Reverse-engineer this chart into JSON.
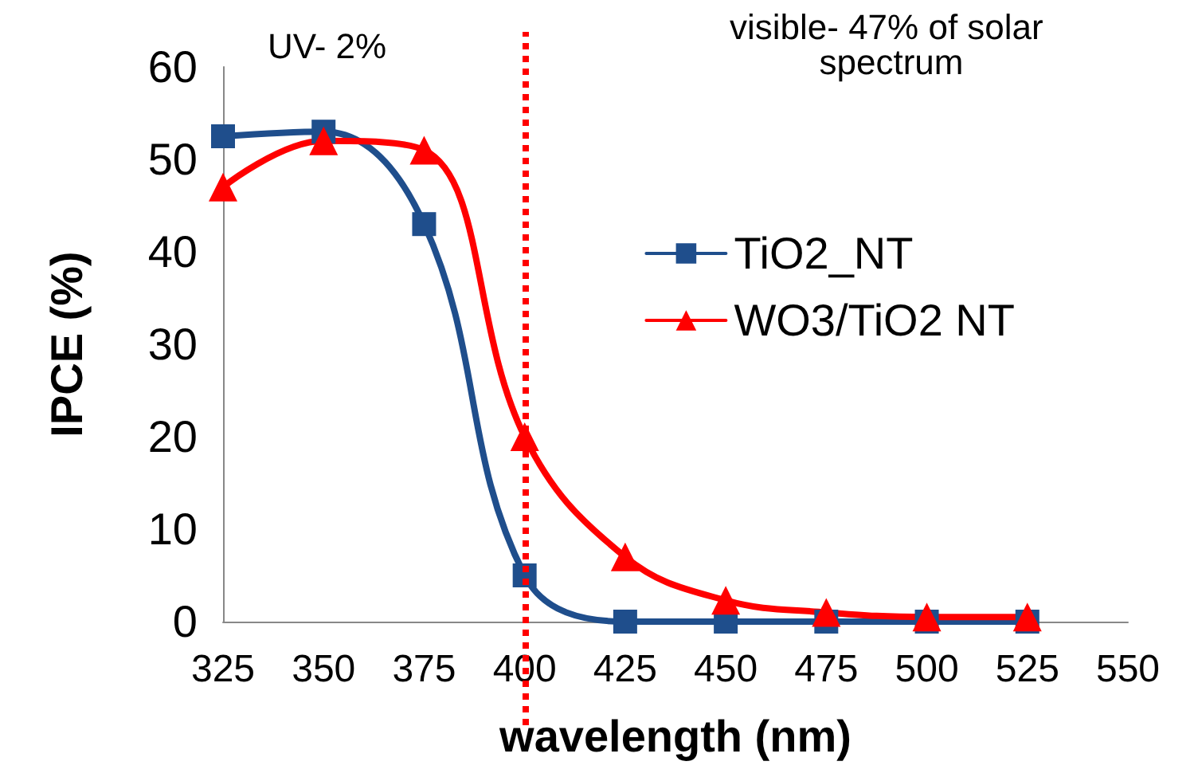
{
  "chart_data": {
    "type": "line",
    "xlabel": "wavelength (nm)",
    "ylabel": "IPCE (%)",
    "x": [
      325,
      350,
      375,
      400,
      425,
      450,
      475,
      500,
      525
    ],
    "series": [
      {
        "name": "TiO2_NT",
        "color": "#1f4e8c",
        "marker": "square",
        "values": [
          52.5,
          53,
          43,
          5,
          0,
          0,
          0,
          0,
          0
        ]
      },
      {
        "name": "WO3/TiO2 NT",
        "color": "#ff0000",
        "marker": "triangle",
        "values": [
          47,
          52,
          51,
          20,
          7,
          2.3,
          1,
          0.5,
          0.5
        ]
      }
    ],
    "xlim": [
      325,
      550
    ],
    "xticks": [
      325,
      350,
      375,
      400,
      425,
      450,
      475,
      500,
      525,
      550
    ],
    "ylim": [
      0,
      60
    ],
    "yticks": [
      0,
      10,
      20,
      30,
      40,
      50,
      60
    ],
    "ref_lines": [
      {
        "axis": "x",
        "value": 400,
        "color": "#ff0000",
        "line_style": "dotted"
      }
    ],
    "annotations": [
      "UV- 2%",
      "visible- 47% of solar spectrum"
    ],
    "grid": false,
    "legend": "right",
    "line_style": "solid"
  }
}
